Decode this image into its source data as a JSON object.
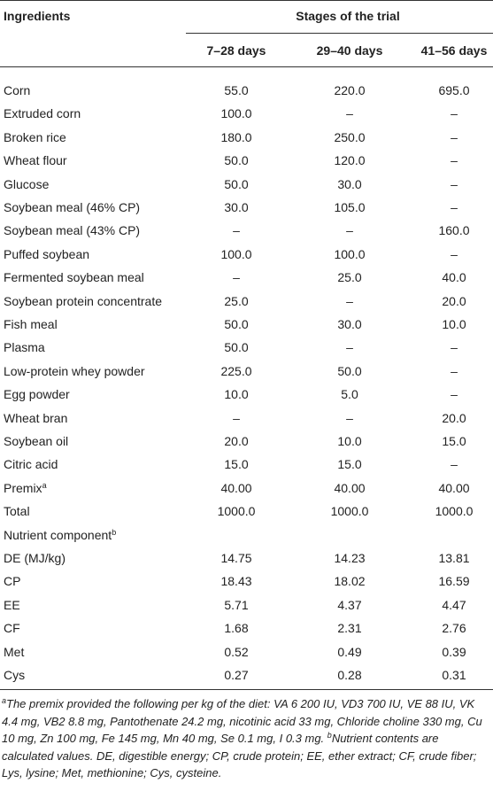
{
  "table": {
    "header": {
      "ingredients": "Ingredients",
      "stages": "Stages of the trial",
      "columns": [
        "7–28 days",
        "29–40 days",
        "41–56 days"
      ]
    },
    "rows": [
      {
        "label": "Corn",
        "cells": [
          "55.0",
          "220.0",
          "695.0"
        ]
      },
      {
        "label": "Extruded corn",
        "cells": [
          "100.0",
          "–",
          "–"
        ]
      },
      {
        "label": "Broken rice",
        "cells": [
          "180.0",
          "250.0",
          "–"
        ]
      },
      {
        "label": "Wheat flour",
        "cells": [
          "50.0",
          "120.0",
          "–"
        ]
      },
      {
        "label": "Glucose",
        "cells": [
          "50.0",
          "30.0",
          "–"
        ]
      },
      {
        "label": "Soybean meal (46% CP)",
        "cells": [
          "30.0",
          "105.0",
          "–"
        ]
      },
      {
        "label": "Soybean meal (43% CP)",
        "cells": [
          "–",
          "–",
          "160.0"
        ]
      },
      {
        "label": "Puffed soybean",
        "cells": [
          "100.0",
          "100.0",
          "–"
        ]
      },
      {
        "label": "Fermented soybean meal",
        "cells": [
          "–",
          "25.0",
          "40.0"
        ]
      },
      {
        "label": "Soybean protein concentrate",
        "cells": [
          "25.0",
          "–",
          "20.0"
        ]
      },
      {
        "label": "Fish meal",
        "cells": [
          "50.0",
          "30.0",
          "10.0"
        ]
      },
      {
        "label": "Plasma",
        "cells": [
          "50.0",
          "–",
          "–"
        ]
      },
      {
        "label": "Low-protein whey powder",
        "cells": [
          "225.0",
          "50.0",
          "–"
        ]
      },
      {
        "label": "Egg powder",
        "cells": [
          "10.0",
          "5.0",
          "–"
        ]
      },
      {
        "label": "Wheat bran",
        "cells": [
          "–",
          "–",
          "20.0"
        ]
      },
      {
        "label": "Soybean oil",
        "cells": [
          "20.0",
          "10.0",
          "15.0"
        ]
      },
      {
        "label": "Citric acid",
        "cells": [
          "15.0",
          "15.0",
          "–"
        ]
      },
      {
        "label": "Premix",
        "sup": "a",
        "cells": [
          "40.00",
          "40.00",
          "40.00"
        ]
      },
      {
        "label": "Total",
        "cells": [
          "1000.0",
          "1000.0",
          "1000.0"
        ]
      },
      {
        "label": "Nutrient component",
        "sup": "b",
        "cells": []
      },
      {
        "label": "DE (MJ/kg)",
        "cells": [
          "14.75",
          "14.23",
          "13.81"
        ]
      },
      {
        "label": "CP",
        "cells": [
          "18.43",
          "18.02",
          "16.59"
        ]
      },
      {
        "label": "EE",
        "cells": [
          "5.71",
          "4.37",
          "4.47"
        ]
      },
      {
        "label": "CF",
        "cells": [
          "1.68",
          "2.31",
          "2.76"
        ]
      },
      {
        "label": "Met",
        "cells": [
          "0.52",
          "0.49",
          "0.39"
        ]
      },
      {
        "label": "Cys",
        "cells": [
          "0.27",
          "0.28",
          "0.31"
        ]
      }
    ]
  },
  "footnotes": [
    {
      "mark": "a",
      "text": "The premix provided the following per kg of the diet: VA 6 200 IU, VD3 700 IU, VE 88 IU, VK 4.4 mg, VB2 8.8 mg, Pantothenate 24.2 mg, nicotinic acid 33 mg, Chloride choline 330 mg, Cu 10 mg, Zn 100 mg, Fe 145 mg, Mn 40 mg, Se 0.1 mg, I 0.3 mg."
    },
    {
      "mark": "b",
      "text": "Nutrient contents are calculated values. DE, digestible energy; CP, crude protein; EE, ether extract; CF, crude fiber; Lys, lysine; Met, methionine; Cys, cysteine."
    }
  ]
}
